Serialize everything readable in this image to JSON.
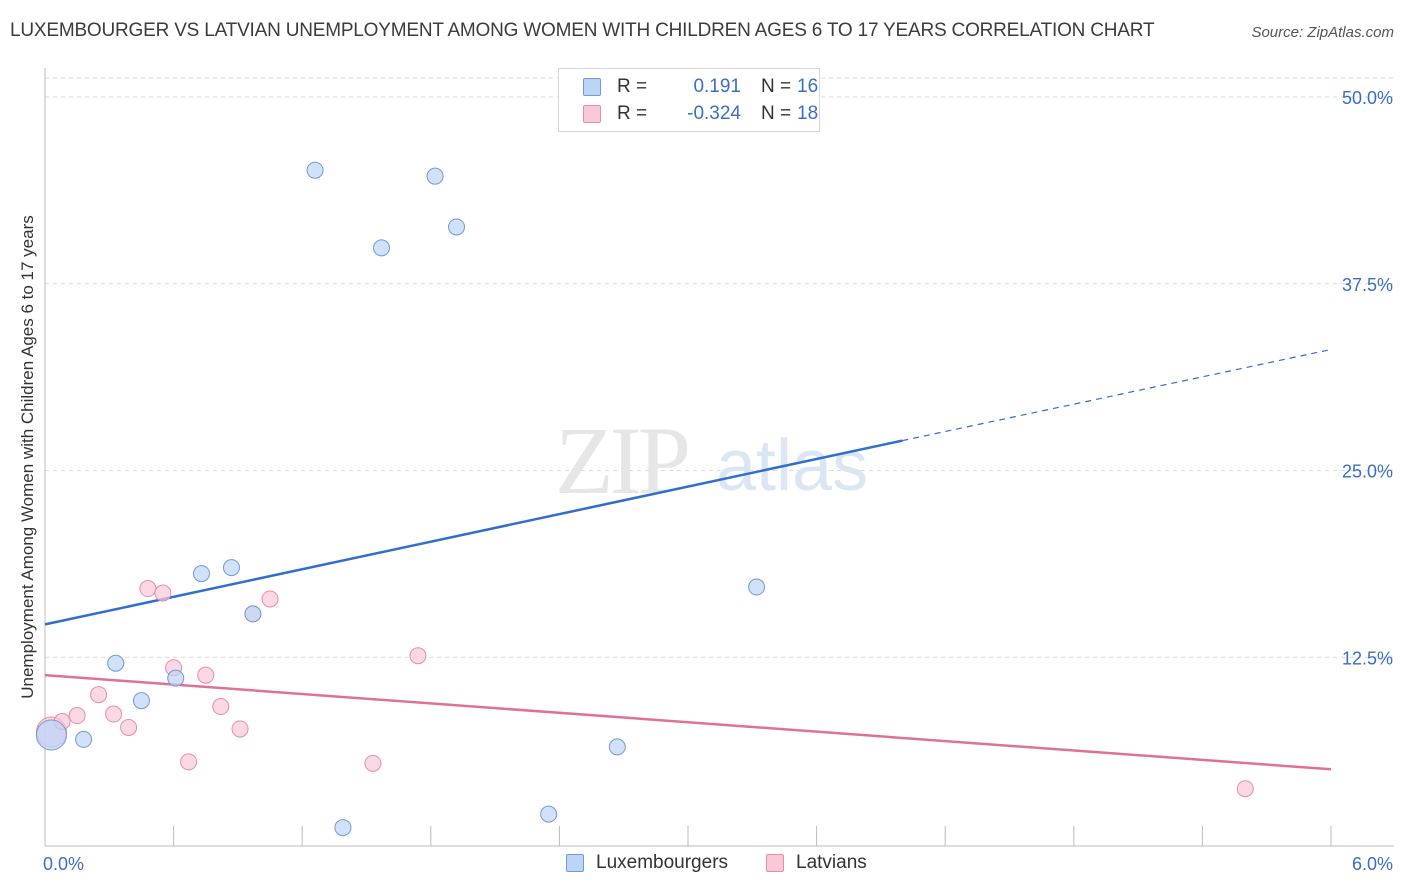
{
  "title": "LUXEMBOURGER VS LATVIAN UNEMPLOYMENT AMONG WOMEN WITH CHILDREN AGES 6 TO 17 YEARS CORRELATION CHART",
  "source": "Source: ZipAtlas.com",
  "watermark": {
    "zip": "ZIP",
    "atlas": "atlas"
  },
  "legend_stats": [
    {
      "r_label": "R =",
      "r_value": "0.191",
      "n_label": "N =",
      "n_value": "16"
    },
    {
      "r_label": "R =",
      "r_value": "-0.324",
      "n_label": "N =",
      "n_value": "18"
    }
  ],
  "legend_bottom": [
    "Luxembourgers",
    "Latvians"
  ],
  "colors": {
    "blue_fill": "#bcd4f5",
    "blue_stroke": "#6f9ad8",
    "blue_line": "#2f6fce",
    "pink_fill": "#f9c9d8",
    "pink_stroke": "#e98bab",
    "pink_line": "#e0709a",
    "tick_label": "#3a6ec4",
    "grid": "#d9d9d9"
  },
  "chart_data": {
    "type": "scatter",
    "title": "LUXEMBOURGER VS LATVIAN UNEMPLOYMENT AMONG WOMEN WITH CHILDREN AGES 6 TO 17 YEARS CORRELATION CHART",
    "xlabel": "",
    "ylabel": "Unemployment Among Women with Children Ages 6 to 17 years",
    "xlim": [
      0,
      6
    ],
    "ylim": [
      0,
      50
    ],
    "x_tick_labels": [
      {
        "value": 0,
        "label": "0.0%"
      },
      {
        "value": 6,
        "label": "6.0%"
      }
    ],
    "y_tick_labels": [
      {
        "value": 12.5,
        "label": "12.5%"
      },
      {
        "value": 25,
        "label": "25.0%"
      },
      {
        "value": 37.5,
        "label": "37.5%"
      },
      {
        "value": 50,
        "label": "50.0%"
      }
    ],
    "series": [
      {
        "name": "Luxembourgers",
        "r": 0.191,
        "n": 16,
        "points": [
          {
            "x": 0.03,
            "y": 7.3,
            "big": true
          },
          {
            "x": 0.18,
            "y": 7.0
          },
          {
            "x": 0.33,
            "y": 12.1
          },
          {
            "x": 0.45,
            "y": 9.6
          },
          {
            "x": 0.61,
            "y": 11.1
          },
          {
            "x": 0.73,
            "y": 18.1
          },
          {
            "x": 0.87,
            "y": 18.5
          },
          {
            "x": 0.97,
            "y": 15.4
          },
          {
            "x": 1.26,
            "y": 45.1
          },
          {
            "x": 1.39,
            "y": 1.1
          },
          {
            "x": 1.57,
            "y": 39.9
          },
          {
            "x": 1.82,
            "y": 44.7
          },
          {
            "x": 1.92,
            "y": 41.3
          },
          {
            "x": 2.35,
            "y": 2.0
          },
          {
            "x": 2.67,
            "y": 6.5
          },
          {
            "x": 3.32,
            "y": 17.2
          }
        ],
        "trend": {
          "x_start": 0,
          "y_start": 14.7,
          "x_end_solid": 4.0,
          "y_end_solid": 27.0,
          "x_end": 6.0,
          "y_end": 33.1
        }
      },
      {
        "name": "Latvians",
        "r": -0.324,
        "n": 18,
        "points": [
          {
            "x": 0.03,
            "y": 7.5,
            "big": true
          },
          {
            "x": 0.08,
            "y": 8.2
          },
          {
            "x": 0.15,
            "y": 8.6
          },
          {
            "x": 0.25,
            "y": 10.0
          },
          {
            "x": 0.32,
            "y": 8.7
          },
          {
            "x": 0.39,
            "y": 7.8
          },
          {
            "x": 0.48,
            "y": 17.1
          },
          {
            "x": 0.55,
            "y": 16.8
          },
          {
            "x": 0.6,
            "y": 11.8
          },
          {
            "x": 0.67,
            "y": 5.5
          },
          {
            "x": 0.75,
            "y": 11.3
          },
          {
            "x": 0.82,
            "y": 9.2
          },
          {
            "x": 0.91,
            "y": 7.7
          },
          {
            "x": 0.97,
            "y": 15.4
          },
          {
            "x": 1.05,
            "y": 16.4
          },
          {
            "x": 1.53,
            "y": 5.4
          },
          {
            "x": 1.74,
            "y": 12.6
          },
          {
            "x": 5.6,
            "y": 3.7
          }
        ],
        "trend": {
          "x_start": 0,
          "y_start": 11.3,
          "x_end": 6.0,
          "y_end": 5.0
        }
      }
    ]
  }
}
